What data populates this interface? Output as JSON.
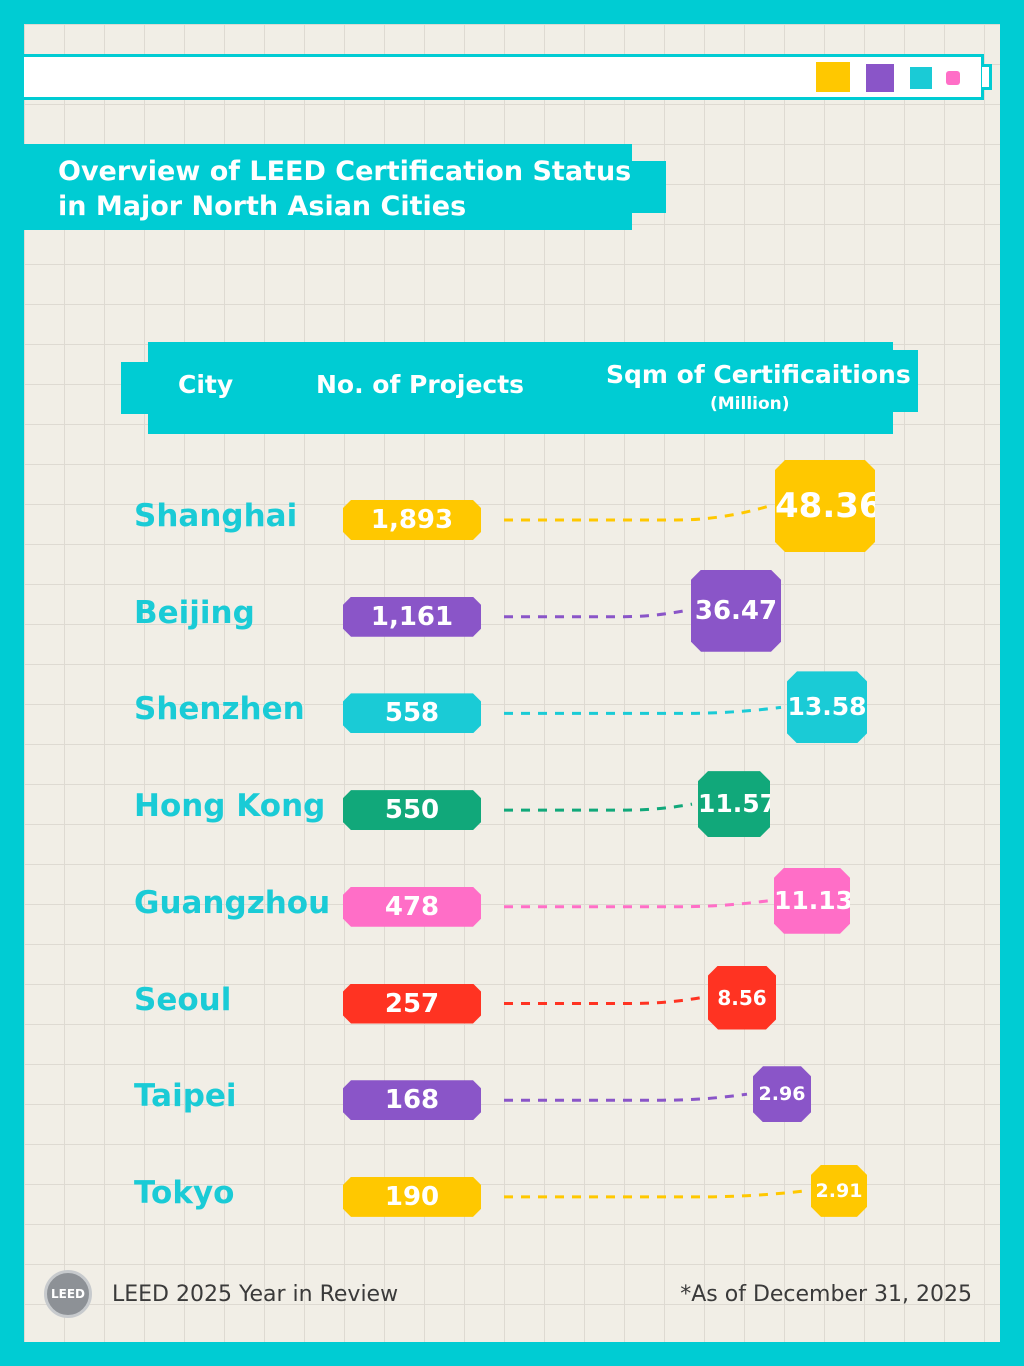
{
  "title_line1": "Overview of LEED Certification Status",
  "title_line2": "in Major North Asian Cities",
  "headers": {
    "city": "City",
    "projects": "No. of Projects",
    "sqm": "Sqm of Certificaitions",
    "sqm_unit": "(Million)"
  },
  "colors": {
    "frame": "#00CCD3",
    "yellow": "#FFC800",
    "purple": "#8A55C8",
    "cyan": "#1ACBD6",
    "green": "#11A87A",
    "pink": "#FF6EC7",
    "red": "#FF3322"
  },
  "chart_data": {
    "type": "table",
    "title": "Overview of LEED Certification Status in Major North Asian Cities",
    "columns": [
      "City",
      "No. of Projects",
      "Sqm of Certificaitions (Million)"
    ],
    "rows": [
      {
        "city": "Shanghai",
        "projects": "1,893",
        "sqm": "48.36",
        "color": "#FFC800"
      },
      {
        "city": "Beijing",
        "projects": "1,161",
        "sqm": "36.47",
        "color": "#8A55C8"
      },
      {
        "city": "Shenzhen",
        "projects": "558",
        "sqm": "13.58",
        "color": "#1ACBD6"
      },
      {
        "city": "Hong Kong",
        "projects": "550",
        "sqm": "11.57",
        "color": "#11A87A"
      },
      {
        "city": "Guangzhou",
        "projects": "478",
        "sqm": "11.13",
        "color": "#FF6EC7"
      },
      {
        "city": "Seoul",
        "projects": "257",
        "sqm": "8.56",
        "color": "#FF3322"
      },
      {
        "city": "Taipei",
        "projects": "168",
        "sqm": "2.96",
        "color": "#8A55C8"
      },
      {
        "city": "Tokyo",
        "projects": "190",
        "sqm": "2.91",
        "color": "#FFC800"
      }
    ]
  },
  "footer": {
    "logo_text": "LEED",
    "left": "LEED 2025 Year in Review",
    "right": "*As of December 31, 2025"
  }
}
